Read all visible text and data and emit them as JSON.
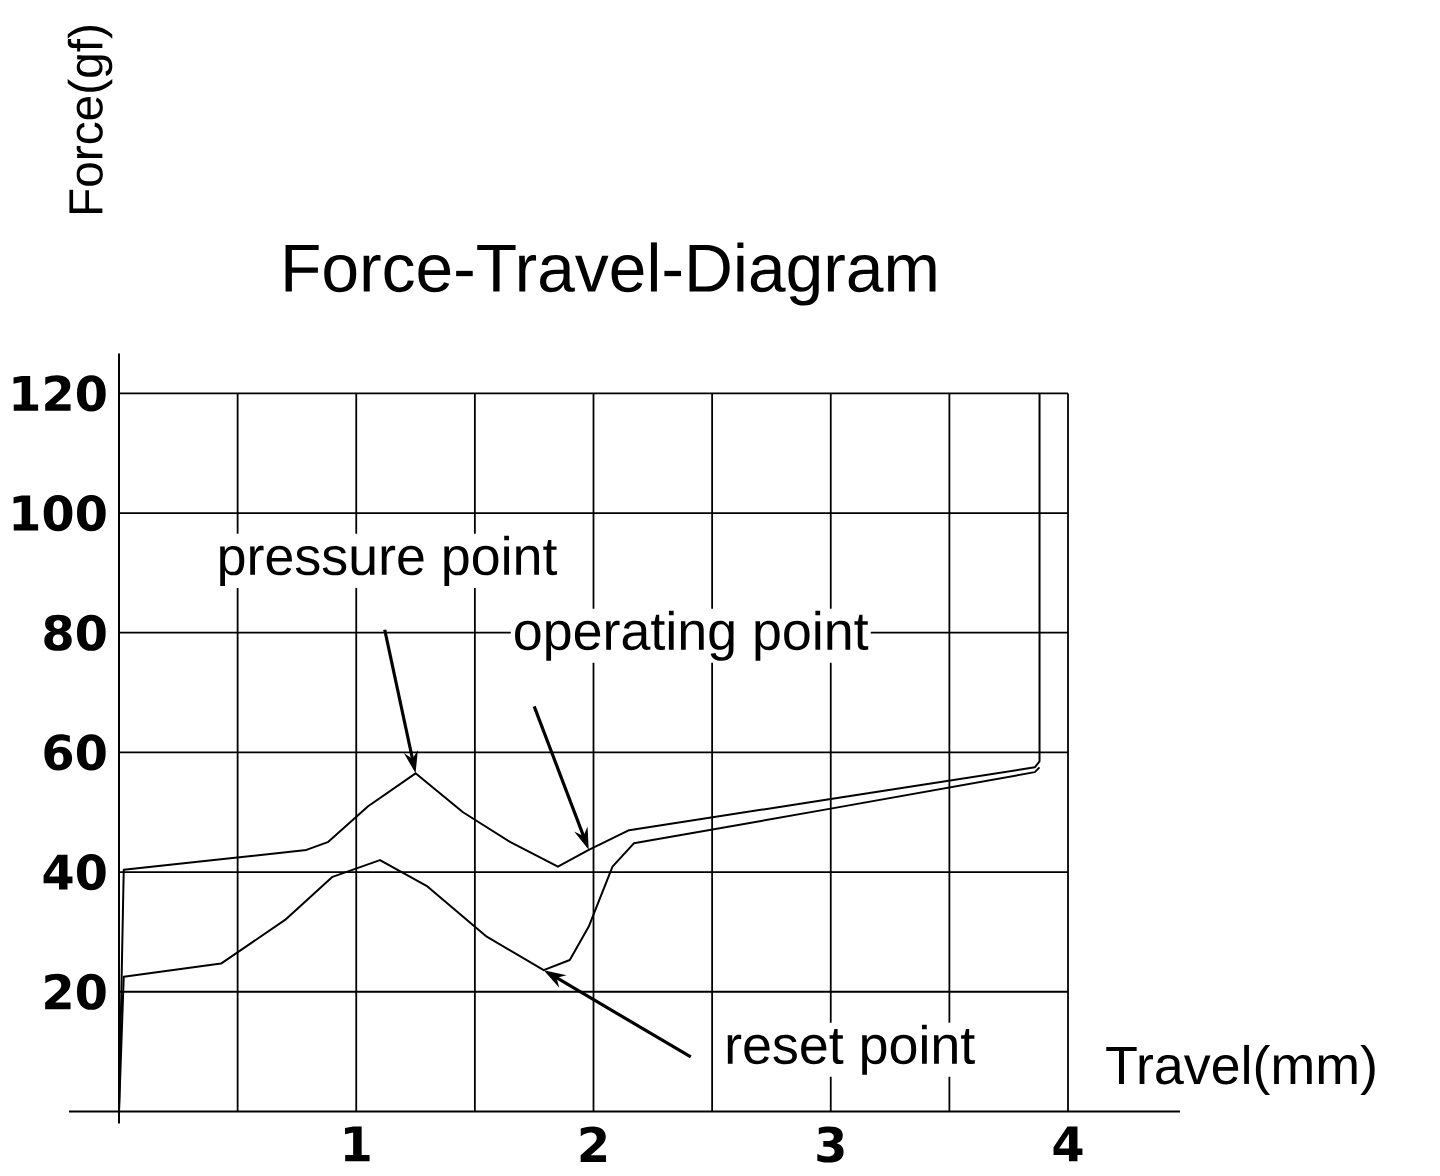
{
  "chart_data": {
    "type": "line",
    "title": "Force-Travel-Diagram",
    "xlabel": "Travel(mm)",
    "ylabel": "Force(gf)",
    "xlim": [
      0,
      4
    ],
    "ylim": [
      0,
      120
    ],
    "xticks": [
      {
        "value": 0.5,
        "label": null
      },
      1,
      {
        "value": 1.5,
        "label": null
      },
      2,
      {
        "value": 2.5,
        "label": null
      },
      3,
      {
        "value": 3.5,
        "label": null
      },
      4
    ],
    "yticks": [
      20,
      40,
      60,
      80,
      100,
      120
    ],
    "grid": true,
    "marker": "none",
    "line_style": "solid",
    "series": [
      {
        "color": "#000000",
        "x": [
          0,
          0.02,
          0.4,
          0.79,
          0.88,
          1.05,
          1.25,
          1.45,
          1.65,
          1.85,
          1.98,
          2.15,
          3.0,
          3.86,
          3.88,
          3.88
        ],
        "values": [
          0,
          40.4,
          42,
          43.7,
          45,
          51,
          56.5,
          50,
          45,
          40.9,
          43.7,
          47,
          52.2,
          57.5,
          58.5,
          120
        ]
      },
      {
        "color": "#000000",
        "x": [
          0,
          0.02,
          0.43,
          0.7,
          0.9,
          1.1,
          1.3,
          1.55,
          1.79,
          1.9,
          1.98,
          2.08,
          2.17,
          3.0,
          3.86,
          3.88
        ],
        "values": [
          0,
          22.5,
          24.7,
          32,
          39.2,
          42,
          37.6,
          29.2,
          23.6,
          25.3,
          30.9,
          40.9,
          44.8,
          50.6,
          56.7,
          57.5
        ]
      }
    ],
    "annotations": [
      {
        "text": "pressure point",
        "x": 1.25,
        "y": 56.5
      },
      {
        "text": "operating point",
        "x": 1.98,
        "y": 43.7
      },
      {
        "text": "reset point",
        "x": 1.79,
        "y": 23.6
      }
    ]
  }
}
